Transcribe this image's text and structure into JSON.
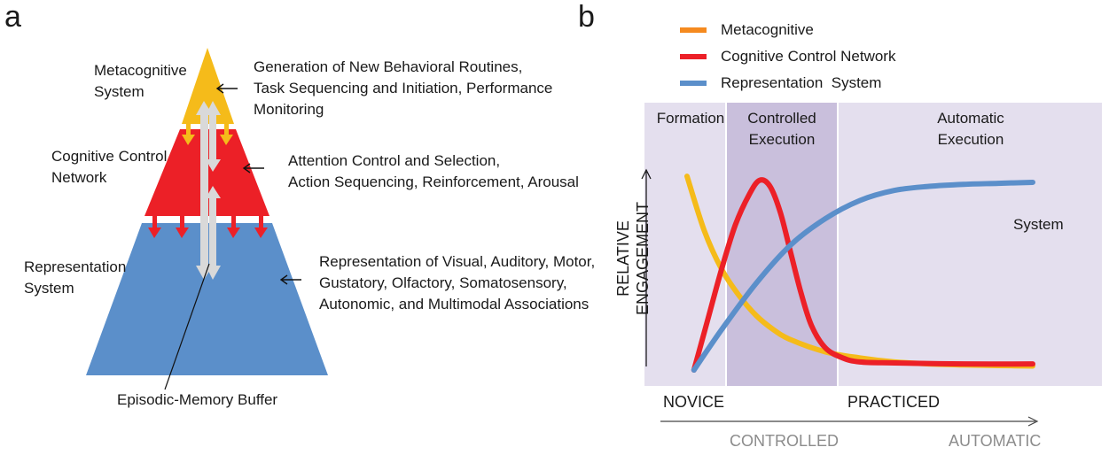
{
  "panel_a": {
    "letter": "a",
    "levels": [
      {
        "name_lines": [
          "Metacognitive",
          "System"
        ],
        "desc_lines": [
          "Generation of New Behavioral Routines,",
          "Task Sequencing and Initiation, Performance",
          "Monitoring"
        ],
        "color": "#f5bb1a"
      },
      {
        "name_lines": [
          "Cognitive Control",
          "Network"
        ],
        "desc_lines": [
          "Attention Control and Selection,",
          "Action Sequencing, Reinforcement, Arousal"
        ],
        "color": "#ec2027"
      },
      {
        "name_lines": [
          "Representation",
          "System"
        ],
        "desc_lines": [
          "Representation of Visual, Auditory, Motor,",
          "Gustatory, Olfactory, Somatosensory,",
          "Autonomic, and Multimodal Associations"
        ],
        "color": "#5b8fca"
      }
    ],
    "buffer_label": "Episodic-Memory Buffer",
    "buffer_color": "#d9d9d9"
  },
  "panel_b": {
    "letter": "b",
    "phases": [
      {
        "lines": [
          "Formation"
        ]
      },
      {
        "lines": [
          "Controlled",
          "Execution"
        ]
      },
      {
        "lines": [
          "Automatic",
          "Execution"
        ]
      }
    ],
    "extra_label": "System",
    "y_axis_label": "RELATIVE ENGAGEMENT",
    "x_axis_labels": {
      "start": "NOVICE",
      "end": "PRACTICED"
    },
    "x_axis_scale": {
      "start": "CONTROLLED",
      "end": "AUTOMATIC"
    },
    "colors": {
      "phase_light": "#e4dfee",
      "phase_dark": "#c9bfdc"
    }
  },
  "chart_data": {
    "type": "line",
    "legend": [
      {
        "name": "Metacognitive",
        "color": "#f58a1f"
      },
      {
        "name": "Cognitive Control Network",
        "color": "#ec2027"
      },
      {
        "name": "Representation  System",
        "color": "#5b8fca"
      }
    ],
    "series": [
      {
        "name": "Metacognitive",
        "color": "#f5bb1a",
        "x": [
          0,
          0.05,
          0.1,
          0.15,
          0.2,
          0.25,
          0.3,
          0.4,
          0.5,
          0.6,
          0.7,
          0.8,
          0.9,
          1.0
        ],
        "y": [
          0.96,
          0.69,
          0.5,
          0.37,
          0.27,
          0.2,
          0.15,
          0.09,
          0.06,
          0.04,
          0.03,
          0.025,
          0.022,
          0.02
        ]
      },
      {
        "name": "Cognitive Control Network",
        "color": "#ec2027",
        "x": [
          0.02,
          0.06,
          0.1,
          0.14,
          0.18,
          0.21,
          0.24,
          0.27,
          0.3,
          0.33,
          0.36,
          0.4,
          0.45,
          0.5,
          0.6,
          0.8,
          1.0
        ],
        "y": [
          0.0,
          0.25,
          0.5,
          0.72,
          0.87,
          0.94,
          0.91,
          0.78,
          0.58,
          0.38,
          0.22,
          0.11,
          0.06,
          0.04,
          0.035,
          0.03,
          0.03
        ]
      },
      {
        "name": "Representation  System",
        "color": "#5b8fca",
        "x": [
          0.02,
          0.1,
          0.2,
          0.3,
          0.4,
          0.5,
          0.6,
          0.7,
          0.8,
          0.9,
          1.0
        ],
        "y": [
          0.0,
          0.2,
          0.43,
          0.62,
          0.75,
          0.84,
          0.89,
          0.91,
          0.92,
          0.925,
          0.93
        ]
      }
    ],
    "phase_boundaries": [
      0.12,
      0.44
    ],
    "xlim": [
      0,
      1
    ],
    "ylim": [
      0,
      1
    ]
  }
}
